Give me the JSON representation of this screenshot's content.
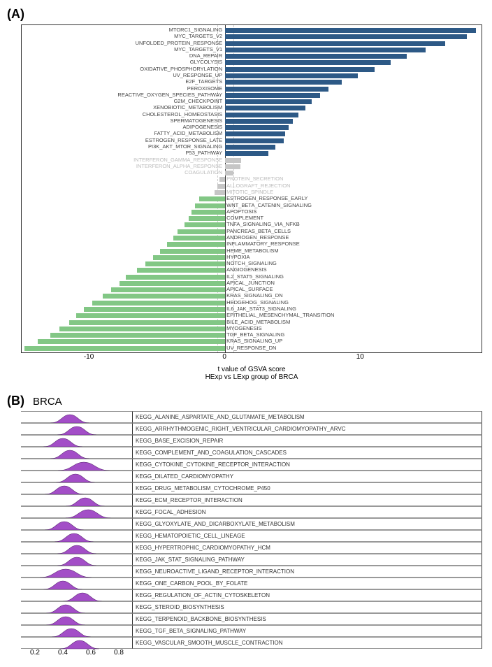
{
  "panelA": {
    "label": "(A)",
    "x_title_line1": "t value of GSVA score",
    "x_title_line2": "HExp vs LExp group of BRCA",
    "xlim": [
      -15,
      19
    ],
    "xticks": [
      -10,
      0,
      10
    ],
    "zero_x": 0,
    "dashed_offsets": [
      -0.6,
      0.6
    ],
    "colors": {
      "blue": "#2d5986",
      "gray": "#c6c6c6",
      "green": "#82c785",
      "label": "#444444",
      "label_gray": "#bbbbbb",
      "border": "#333333"
    },
    "bars": [
      {
        "label": "MTORC1_SIGNALING",
        "v": 18.5,
        "g": "blue"
      },
      {
        "label": "MYC_TARGETS_V2",
        "v": 17.8,
        "g": "blue"
      },
      {
        "label": "UNFOLDED_PROTEIN_RESPONSE",
        "v": 16.2,
        "g": "blue"
      },
      {
        "label": "MYC_TARGETS_V1",
        "v": 14.8,
        "g": "blue"
      },
      {
        "label": "DNA_REPAIR",
        "v": 13.4,
        "g": "blue"
      },
      {
        "label": "GLYCOLYSIS",
        "v": 12.2,
        "g": "blue"
      },
      {
        "label": "OXIDATIVE_PHOSPHORYLATION",
        "v": 11.0,
        "g": "blue"
      },
      {
        "label": "UV_RESPONSE_UP",
        "v": 9.8,
        "g": "blue"
      },
      {
        "label": "E2F_TARGETS",
        "v": 8.6,
        "g": "blue"
      },
      {
        "label": "PEROXISOME",
        "v": 7.6,
        "g": "blue"
      },
      {
        "label": "REACTIVE_OXYGEN_SPECIES_PATHWAY",
        "v": 7.0,
        "g": "blue"
      },
      {
        "label": "G2M_CHECKPOINT",
        "v": 6.4,
        "g": "blue"
      },
      {
        "label": "XENOBIOTIC_METABOLISM",
        "v": 5.9,
        "g": "blue"
      },
      {
        "label": "CHOLESTEROL_HOMEOSTASIS",
        "v": 5.4,
        "g": "blue"
      },
      {
        "label": "SPERMATOGENESIS",
        "v": 5.0,
        "g": "blue"
      },
      {
        "label": "ADIPOGENESIS",
        "v": 4.7,
        "g": "blue"
      },
      {
        "label": "FATTY_ACID_METABOLISM",
        "v": 4.4,
        "g": "blue"
      },
      {
        "label": "ESTROGEN_RESPONSE_LATE",
        "v": 4.3,
        "g": "blue"
      },
      {
        "label": "PI3K_AKT_MTOR_SIGNALING",
        "v": 3.7,
        "g": "blue"
      },
      {
        "label": "P53_PATHWAY",
        "v": 3.2,
        "g": "blue"
      },
      {
        "label": "INTERFERON_GAMMA_RESPONSE",
        "v": 1.2,
        "g": "gray"
      },
      {
        "label": "INTERFERON_ALPHA_RESPONSE",
        "v": 1.1,
        "g": "gray"
      },
      {
        "label": "COAGULATION",
        "v": 0.6,
        "g": "gray"
      },
      {
        "label": "PROTEIN_SECRETION",
        "v": -0.4,
        "g": "gray"
      },
      {
        "label": "ALLOGRAFT_REJECTION",
        "v": -0.6,
        "g": "gray"
      },
      {
        "label": "MITOTIC_SPINDLE",
        "v": -0.8,
        "g": "gray"
      },
      {
        "label": "ESTROGEN_RESPONSE_EARLY",
        "v": -1.9,
        "g": "green"
      },
      {
        "label": "WNT_BETA_CATENIN_SIGNALING",
        "v": -2.2,
        "g": "green"
      },
      {
        "label": "APOPTOSIS",
        "v": -2.5,
        "g": "green"
      },
      {
        "label": "COMPLEMENT",
        "v": -2.7,
        "g": "green"
      },
      {
        "label": "TNFA_SIGNALING_VIA_NFKB",
        "v": -3.0,
        "g": "green"
      },
      {
        "label": "PANCREAS_BETA_CELLS",
        "v": -3.5,
        "g": "green"
      },
      {
        "label": "ANDROGEN_RESPONSE",
        "v": -3.8,
        "g": "green"
      },
      {
        "label": "INFLAMMATORY_RESPONSE",
        "v": -4.3,
        "g": "green"
      },
      {
        "label": "HEME_METABOLISM",
        "v": -4.8,
        "g": "green"
      },
      {
        "label": "HYPOXIA",
        "v": -5.3,
        "g": "green"
      },
      {
        "label": "NOTCH_SIGNALING",
        "v": -5.9,
        "g": "green"
      },
      {
        "label": "ANGIOGENESIS",
        "v": -6.5,
        "g": "green"
      },
      {
        "label": "IL2_STAT5_SIGNALING",
        "v": -7.3,
        "g": "green"
      },
      {
        "label": "APICAL_JUNCTION",
        "v": -7.8,
        "g": "green"
      },
      {
        "label": "APICAL_SURFACE",
        "v": -8.4,
        "g": "green"
      },
      {
        "label": "KRAS_SIGNALING_DN",
        "v": -9.0,
        "g": "green"
      },
      {
        "label": "HEDGEHOG_SIGNALING",
        "v": -9.8,
        "g": "green"
      },
      {
        "label": "IL6_JAK_STAT3_SIGNALING",
        "v": -10.4,
        "g": "green"
      },
      {
        "label": "EPITHELIAL_MESENCHYMAL_TRANSITION",
        "v": -11.0,
        "g": "green"
      },
      {
        "label": "BILE_ACID_METABOLISM",
        "v": -11.5,
        "g": "green"
      },
      {
        "label": "MYOGENESIS",
        "v": -12.2,
        "g": "green"
      },
      {
        "label": "TGF_BETA_SIGNALING",
        "v": -12.9,
        "g": "green"
      },
      {
        "label": "KRAS_SIGNALING_UP",
        "v": -13.8,
        "g": "green"
      },
      {
        "label": "UV_RESPONSE_DN",
        "v": -14.8,
        "g": "green"
      }
    ]
  },
  "panelB": {
    "label": "(B)",
    "title": "BRCA",
    "xlim": [
      0.1,
      0.9
    ],
    "xticks": [
      0.2,
      0.4,
      0.6,
      0.8
    ],
    "ridge_color": "#a34ec7",
    "ridge_stroke": "#5a2a73",
    "label_fontsize": 8,
    "rows": [
      {
        "label": "KEGG_ALANINE_ASPARTATE_AND_GLUTAMATE_METABOLISM",
        "center": 0.45,
        "spread": 0.06
      },
      {
        "label": "KEGG_ARRHYTHMOGENIC_RIGHT_VENTRICULAR_CARDIOMYOPATHY_ARVC",
        "center": 0.5,
        "spread": 0.06
      },
      {
        "label": "KEGG_BASE_EXCISION_REPAIR",
        "center": 0.4,
        "spread": 0.06
      },
      {
        "label": "KEGG_COMPLEMENT_AND_COAGULATION_CASCADES",
        "center": 0.45,
        "spread": 0.06
      },
      {
        "label": "KEGG_CYTOKINE_CYTOKINE_RECEPTOR_INTERACTION",
        "center": 0.55,
        "spread": 0.08
      },
      {
        "label": "KEGG_DILATED_CARDIOMYOPATHY",
        "center": 0.49,
        "spread": 0.06
      },
      {
        "label": "KEGG_DRUG_METABOLISM_CYTOCHROME_P450",
        "center": 0.41,
        "spread": 0.06
      },
      {
        "label": "KEGG_ECM_RECEPTOR_INTERACTION",
        "center": 0.56,
        "spread": 0.06
      },
      {
        "label": "KEGG_FOCAL_ADHESION",
        "center": 0.58,
        "spread": 0.07
      },
      {
        "label": "KEGG_GLYOXYLATE_AND_DICARBOXYLATE_METABOLISM",
        "center": 0.41,
        "spread": 0.06
      },
      {
        "label": "KEGG_HEMATOPOIETIC_CELL_LINEAGE",
        "center": 0.48,
        "spread": 0.06
      },
      {
        "label": "KEGG_HYPERTROPHIC_CARDIOMYOPATHY_HCM",
        "center": 0.5,
        "spread": 0.06
      },
      {
        "label": "KEGG_JAK_STAT_SIGNALING_PATHWAY",
        "center": 0.5,
        "spread": 0.06
      },
      {
        "label": "KEGG_NEUROACTIVE_LIGAND_RECEPTOR_INTERACTION",
        "center": 0.42,
        "spread": 0.08
      },
      {
        "label": "KEGG_ONE_CARBON_POOL_BY_FOLATE",
        "center": 0.4,
        "spread": 0.06
      },
      {
        "label": "KEGG_REGULATION_OF_ACTIN_CYTOSKELETON",
        "center": 0.54,
        "spread": 0.06
      },
      {
        "label": "KEGG_STEROID_BIOSYNTHESIS",
        "center": 0.42,
        "spread": 0.06
      },
      {
        "label": "KEGG_TERPENOID_BACKBONE_BIOSYNTHESIS",
        "center": 0.42,
        "spread": 0.06
      },
      {
        "label": "KEGG_TGF_BETA_SIGNALING_PATHWAY",
        "center": 0.46,
        "spread": 0.06
      },
      {
        "label": "KEGG_VASCULAR_SMOOTH_MUSCLE_CONTRACTION",
        "center": 0.52,
        "spread": 0.06
      }
    ]
  }
}
